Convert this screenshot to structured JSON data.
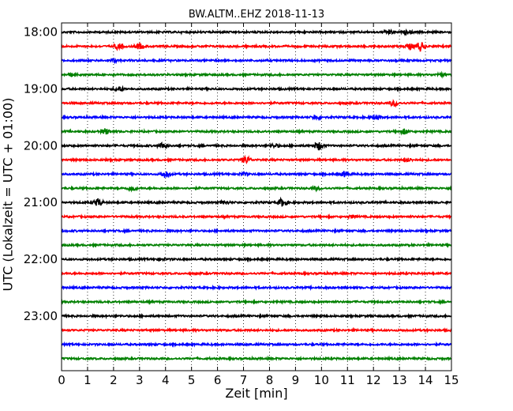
{
  "chart_data": {
    "type": "line",
    "title": "BW.ALTM..EHZ 2018-11-13",
    "xlabel": "Zeit  [min]",
    "ylabel": "UTC (Lokalzeit = UTC + 01:00)",
    "xlim": [
      0,
      15
    ],
    "x_ticks": [
      "0",
      "1",
      "2",
      "3",
      "4",
      "5",
      "6",
      "7",
      "8",
      "9",
      "10",
      "11",
      "12",
      "13",
      "14",
      "15"
    ],
    "y_tick_labels": [
      "18:00",
      "19:00",
      "20:00",
      "21:00",
      "22:00",
      "23:00"
    ],
    "vertical_grid": true,
    "row_minutes": 15,
    "colors": [
      "#000000",
      "#ff0000",
      "#0000ff",
      "#008000"
    ],
    "series": [
      {
        "start": "18:00",
        "color": "#000000",
        "events": [
          [
            12.6,
            0.7
          ],
          [
            13.3,
            0.6
          ]
        ]
      },
      {
        "start": "18:15",
        "color": "#ff0000",
        "events": [
          [
            2.2,
            1.2
          ],
          [
            3.0,
            1.0
          ],
          [
            13.8,
            1.8
          ],
          [
            13.4,
            1.0
          ]
        ]
      },
      {
        "start": "18:30",
        "color": "#0000ff",
        "events": [
          [
            2.0,
            0.5
          ]
        ]
      },
      {
        "start": "18:45",
        "color": "#008000",
        "events": [
          [
            0.4,
            0.6
          ],
          [
            14.6,
            0.5
          ]
        ]
      },
      {
        "start": "19:00",
        "color": "#000000",
        "events": [
          [
            2.2,
            1.0
          ]
        ]
      },
      {
        "start": "19:15",
        "color": "#ff0000",
        "events": [
          [
            12.8,
            1.1
          ]
        ]
      },
      {
        "start": "19:30",
        "color": "#0000ff",
        "events": [
          [
            9.8,
            0.7
          ],
          [
            12.1,
            1.0
          ]
        ]
      },
      {
        "start": "19:45",
        "color": "#008000",
        "events": [
          [
            1.7,
            1.1
          ],
          [
            13.2,
            1.0
          ]
        ]
      },
      {
        "start": "20:00",
        "color": "#000000",
        "events": [
          [
            3.9,
            1.3
          ],
          [
            9.9,
            1.6
          ],
          [
            8.2,
            0.6
          ]
        ]
      },
      {
        "start": "20:15",
        "color": "#ff0000",
        "events": [
          [
            7.1,
            1.4
          ],
          [
            13.3,
            0.6
          ]
        ]
      },
      {
        "start": "20:30",
        "color": "#0000ff",
        "events": [
          [
            4.0,
            1.4
          ],
          [
            10.9,
            1.0
          ],
          [
            7.0,
            0.5
          ]
        ]
      },
      {
        "start": "20:45",
        "color": "#008000",
        "events": [
          [
            2.7,
            1.0
          ],
          [
            9.8,
            0.6
          ]
        ]
      },
      {
        "start": "21:00",
        "color": "#000000",
        "events": [
          [
            1.4,
            1.4
          ],
          [
            8.5,
            1.6
          ],
          [
            6.3,
            0.6
          ]
        ]
      },
      {
        "start": "21:15",
        "color": "#ff0000",
        "events": [
          [
            11.2,
            0.5
          ]
        ]
      },
      {
        "start": "21:30",
        "color": "#0000ff",
        "events": []
      },
      {
        "start": "21:45",
        "color": "#008000",
        "events": []
      },
      {
        "start": "22:00",
        "color": "#000000",
        "events": [
          [
            3.8,
            0.4
          ]
        ]
      },
      {
        "start": "22:15",
        "color": "#ff0000",
        "events": []
      },
      {
        "start": "22:30",
        "color": "#0000ff",
        "events": []
      },
      {
        "start": "22:45",
        "color": "#008000",
        "events": []
      },
      {
        "start": "23:00",
        "color": "#000000",
        "events": []
      },
      {
        "start": "23:15",
        "color": "#ff0000",
        "events": []
      },
      {
        "start": "23:30",
        "color": "#0000ff",
        "events": []
      },
      {
        "start": "23:45",
        "color": "#008000",
        "events": []
      }
    ]
  }
}
